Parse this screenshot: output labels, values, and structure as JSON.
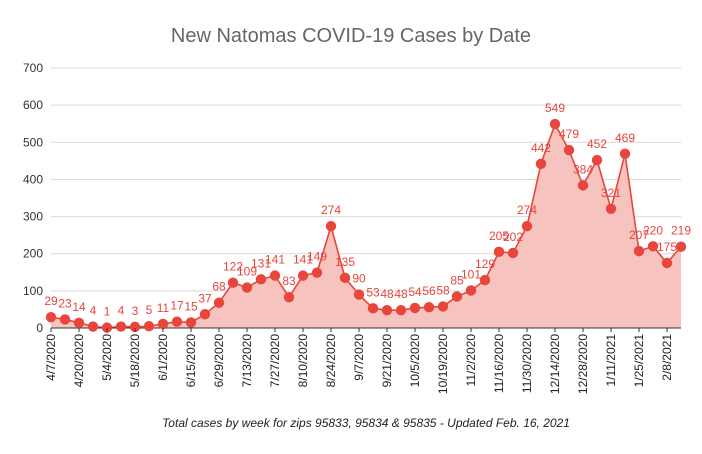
{
  "chart_data": {
    "type": "area",
    "title": "New Natomas COVID-19 Cases by Date",
    "subtitle": "Total cases by week for zips 95833, 95834 & 95835 - Updated Feb. 16, 2021",
    "xlabel": "",
    "ylabel": "",
    "ylim": [
      0,
      700
    ],
    "yticks": [
      "0",
      "100",
      "200",
      "300",
      "400",
      "500",
      "600",
      "700"
    ],
    "grid": true,
    "legend": "none",
    "x": [
      "4/7/2020",
      "4/13/2020",
      "4/20/2020",
      "4/27/2020",
      "5/4/2020",
      "5/11/2020",
      "5/18/2020",
      "5/25/2020",
      "6/1/2020",
      "6/8/2020",
      "6/15/2020",
      "6/22/2020",
      "6/29/2020",
      "7/6/2020",
      "7/13/2020",
      "7/20/2020",
      "7/27/2020",
      "8/3/2020",
      "8/10/2020",
      "8/17/2020",
      "8/24/2020",
      "8/31/2020",
      "9/7/2020",
      "9/14/2020",
      "9/21/2020",
      "9/28/2020",
      "10/5/2020",
      "10/12/2020",
      "10/19/2020",
      "10/26/2020",
      "11/2/2020",
      "11/9/2020",
      "11/16/2020",
      "11/23/2020",
      "11/30/2020",
      "12/7/2020",
      "12/14/2020",
      "12/21/2020",
      "12/28/2020",
      "1/4/2021",
      "1/11/2021",
      "1/18/2021",
      "1/25/2021",
      "2/1/2021",
      "2/8/2021",
      "2/15/2021"
    ],
    "x_tick_labels": [
      "4/7/2020",
      "4/20/2020",
      "5/4/2020",
      "5/18/2020",
      "6/1/2020",
      "6/15/2020",
      "6/29/2020",
      "7/13/2020",
      "7/27/2020",
      "8/10/2020",
      "8/24/2020",
      "9/7/2020",
      "9/21/2020",
      "10/5/2020",
      "10/19/2020",
      "11/2/2020",
      "11/16/2020",
      "11/30/2020",
      "12/14/2020",
      "12/28/2020",
      "1/11/2021",
      "1/25/2021",
      "2/8/2021"
    ],
    "values": [
      29,
      23,
      14,
      4,
      1,
      4,
      3,
      5,
      11,
      17,
      15,
      37,
      68,
      122,
      109,
      131,
      141,
      83,
      141,
      149,
      274,
      135,
      90,
      53,
      48,
      48,
      54,
      56,
      58,
      85,
      101,
      129,
      205,
      202,
      274,
      442,
      549,
      479,
      384,
      452,
      321,
      469,
      207,
      220,
      175,
      219
    ],
    "colors": {
      "line": "#e8453c",
      "fill": "#f6c3bf",
      "grid": "#d9d9d9",
      "axis": "#333333",
      "label": "#e8453c"
    }
  }
}
